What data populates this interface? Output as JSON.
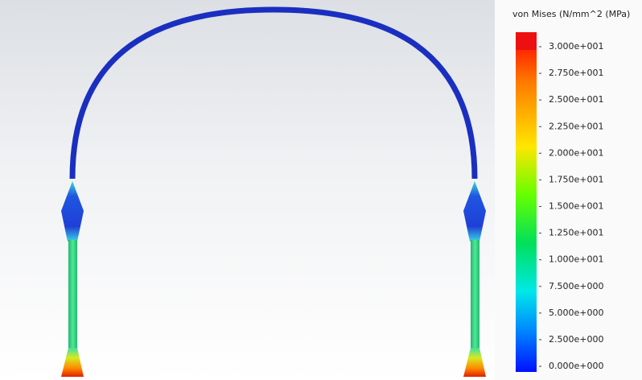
{
  "legend": {
    "title": "von Mises (N/mm^2 (MPa)",
    "labels": [
      "3.000e+001",
      "2.750e+001",
      "2.500e+001",
      "2.250e+001",
      "2.000e+001",
      "1.750e+001",
      "1.500e+001",
      "1.250e+001",
      "1.000e+001",
      "7.500e+000",
      "5.000e+000",
      "2.500e+000",
      "0.000e+000"
    ]
  }
}
